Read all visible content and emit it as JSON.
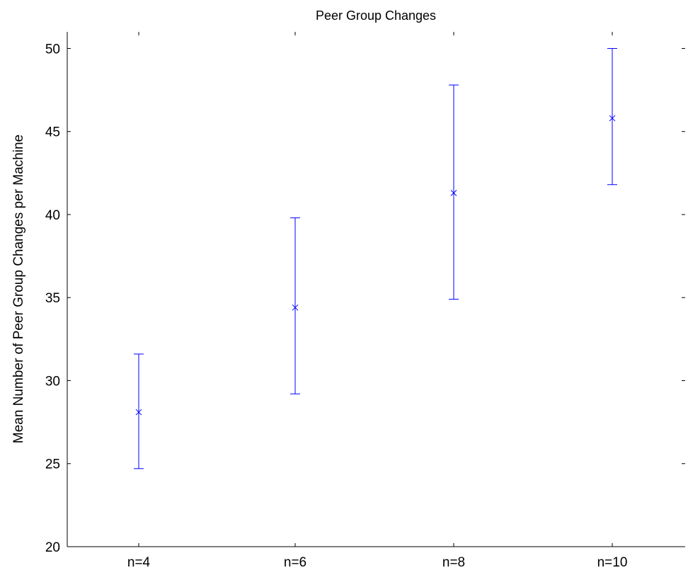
{
  "chart_data": {
    "type": "scatter",
    "title": "Peer Group Changes",
    "xlabel": "",
    "ylabel": "Mean Number of Peer Group Changes per Machine",
    "categories": [
      "n=4",
      "n=6",
      "n=8",
      "n=10"
    ],
    "series": [
      {
        "marker": "x",
        "color": "#0000ff",
        "points": [
          {
            "x": "n=4",
            "y": 28.1,
            "lower": 24.7,
            "upper": 31.6
          },
          {
            "x": "n=6",
            "y": 34.4,
            "lower": 29.2,
            "upper": 39.8
          },
          {
            "x": "n=8",
            "y": 41.3,
            "lower": 34.9,
            "upper": 47.8
          },
          {
            "x": "n=10",
            "y": 45.8,
            "lower": 41.8,
            "upper": 50.0
          }
        ]
      }
    ],
    "ylim": [
      20,
      51
    ],
    "yticks": [
      20,
      25,
      30,
      35,
      40,
      45,
      50
    ],
    "ytick_labels": [
      "20",
      "25",
      "30",
      "35",
      "40",
      "45",
      "50"
    ],
    "grid": false,
    "legend": false
  },
  "colors": {
    "series": "#0000ff",
    "axes": "#000000",
    "background": "#ffffff"
  }
}
